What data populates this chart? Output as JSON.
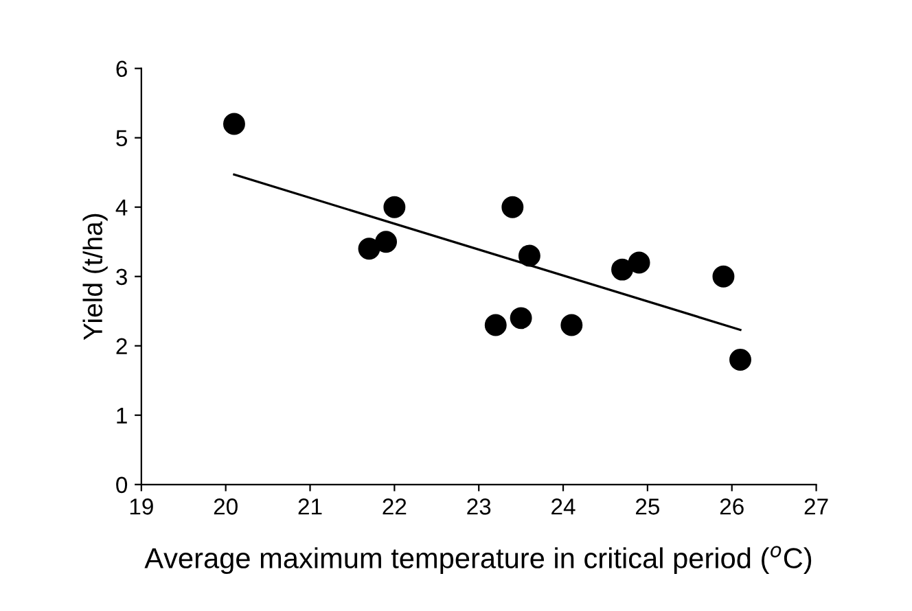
{
  "chart_data": {
    "type": "scatter",
    "xlabel": "Average maximum temperature in critical period ($^{o}$C)",
    "ylabel": "Yield (t/ha)",
    "xlim": [
      19,
      27
    ],
    "xticks": [
      19,
      20,
      21,
      22,
      23,
      24,
      25,
      26,
      27
    ],
    "ylim": [
      0,
      6
    ],
    "yticks": [
      0,
      1,
      2,
      3,
      4,
      5,
      6
    ],
    "grid": false,
    "legend": false,
    "series": [
      {
        "marker": "circle",
        "color": "#000000",
        "x": [
          20.1,
          21.7,
          21.9,
          22.0,
          23.2,
          23.4,
          23.5,
          23.6,
          24.1,
          24.7,
          24.9,
          25.9,
          26.1
        ],
        "values": [
          5.2,
          3.4,
          3.5,
          4.0,
          2.3,
          4.0,
          2.4,
          3.3,
          2.3,
          3.1,
          3.2,
          3.0,
          1.8
        ]
      },
      {
        "type": "line",
        "color": "#000000",
        "x": [
          20.1,
          26.1
        ],
        "values": [
          4.47,
          2.23
        ]
      }
    ]
  }
}
